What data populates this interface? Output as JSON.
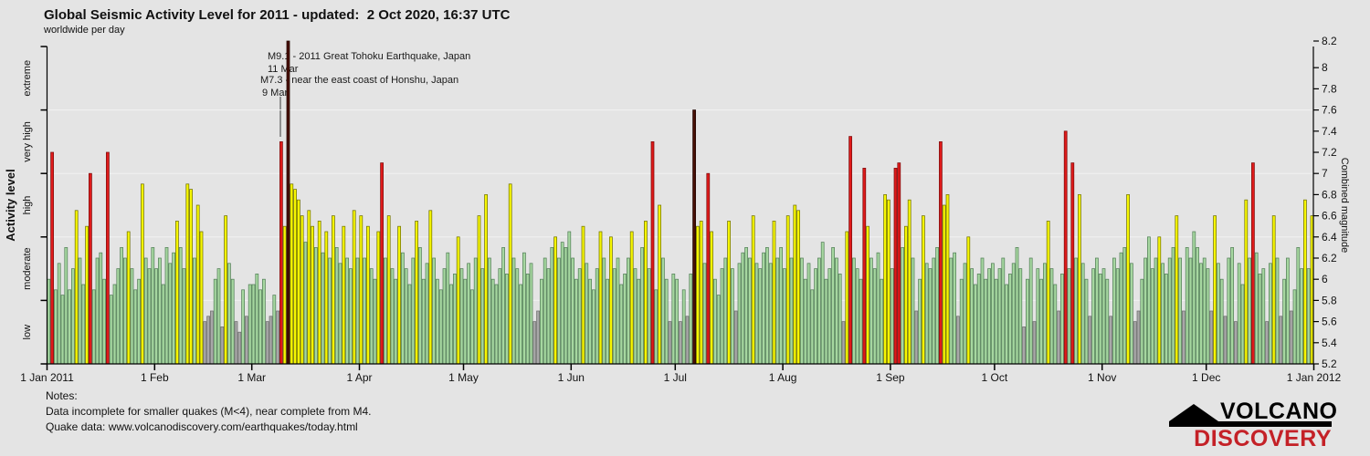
{
  "title": "Global Seismic Activity Level for 2011 - updated:  2 Oct 2020, 16:37 UTC",
  "subtitle": "worldwide per day",
  "annotations": {
    "tohoku_line1": "M9.1 - 2011 Great Tohoku Earthquake, Japan",
    "tohoku_line2": "11 Mar",
    "honshu_line1": "M7.3 - near the east coast of Honshu, Japan",
    "honshu_line2": "9 Mar"
  },
  "axes": {
    "left_label": "Activity level",
    "left_categories": [
      "extreme",
      "very high",
      "high",
      "moderate",
      "low"
    ],
    "right_label": "Combined magnitude",
    "right_ticks": [
      "8.2",
      "8",
      "7.8",
      "7.6",
      "7.4",
      "7.2",
      "7",
      "6.8",
      "6.6",
      "6.4",
      "6.2",
      "6",
      "5.8",
      "5.6",
      "5.4",
      "5.2"
    ],
    "x_ticks": [
      "1 Jan 2011",
      "1 Feb",
      "1 Mar",
      "1 Apr",
      "1 May",
      "1 Jun",
      "1 Jul",
      "1 Aug",
      "1 Sep",
      "1 Oct",
      "1 Nov",
      "1 Dec",
      "1 Jan 2012"
    ]
  },
  "notes": {
    "heading": "Notes:",
    "lines": [
      "Data incomplete for smaller quakes (M<4), near complete from M4.",
      "Quake data: www.volcanodiscovery.com/earthquakes/today.html"
    ]
  },
  "logo": {
    "line1": "VOLCANO",
    "line2": "DISCOVERY"
  },
  "colors": {
    "background": "#e4e4e4",
    "grid": "#f2f2f2",
    "axis": "#000000",
    "tick_text": "#111111",
    "annotation_line": "#8f8f8f",
    "logo_red": "#c42127"
  },
  "chart_data": {
    "type": "bar",
    "title": "Global Seismic Activity Level for 2011",
    "subtitle": "worldwide per day",
    "xlabel": "",
    "ylabel_left": "Activity level",
    "ylabel_right": "Combined magnitude",
    "ylim": [
      5.2,
      8.2
    ],
    "grid": "horizontal category boundaries",
    "x_tick_day_offsets": [
      0,
      31,
      59,
      90,
      120,
      151,
      181,
      212,
      243,
      273,
      304,
      334,
      365
    ],
    "level_codes": {
      "x": "low",
      "g": "moderate",
      "y": "high",
      "r": "very_high",
      "m": "extreme"
    },
    "level_colors": {
      "low": "#a8a8a8",
      "moderate": "#a6d7a0",
      "high": "#f7f701",
      "very_high": "#df1a1a",
      "extreme": "#470f05"
    },
    "level_strokes": {
      "low": "#6f6f6f",
      "moderate": "#55815a",
      "high": "#737300",
      "very_high": "#7e0d0d",
      "extreme": "#200400"
    },
    "notable_events": [
      {
        "date": "9 Mar",
        "magnitude": 7.3,
        "label": "M7.3 - near the east coast of Honshu, Japan"
      },
      {
        "date": "11 Mar",
        "magnitude": 9.1,
        "label": "M9.1 - 2011 Great Tohoku Earthquake, Japan",
        "clipped_above": 8.2
      }
    ],
    "months": [
      {
        "label": "Jan",
        "days": 31,
        "levels": "grggggggyggyrggggrgggggygggyggg",
        "magnitudes": [
          6.0,
          7.2,
          5.9,
          6.15,
          5.85,
          6.3,
          5.9,
          6.1,
          6.65,
          6.2,
          5.95,
          6.5,
          7.0,
          5.9,
          6.2,
          6.25,
          6.0,
          7.2,
          5.85,
          5.95,
          6.1,
          6.3,
          6.2,
          6.45,
          6.1,
          5.9,
          6.0,
          6.9,
          6.2,
          6.1,
          6.3
        ]
      },
      {
        "label": "Feb",
        "days": 28,
        "levels": "ggggggyggyygyyxxxggxyggxxgxg",
        "magnitudes": [
          6.1,
          6.2,
          5.95,
          6.3,
          6.15,
          6.25,
          6.55,
          6.3,
          6.1,
          6.9,
          6.85,
          6.2,
          6.7,
          6.45,
          5.6,
          5.65,
          5.7,
          6.0,
          6.1,
          5.55,
          6.6,
          6.15,
          6.0,
          5.6,
          5.5,
          5.9,
          5.65,
          5.95
        ]
      },
      {
        "label": "Mar",
        "days": 31,
        "levels": "ggggxxgxrymyyyygyygygygyggyggyg",
        "magnitudes": [
          5.95,
          6.05,
          5.9,
          6.0,
          5.6,
          5.65,
          5.85,
          5.7,
          7.3,
          6.5,
          8.25,
          6.9,
          6.85,
          6.75,
          6.6,
          6.35,
          6.65,
          6.5,
          6.3,
          6.55,
          6.25,
          6.45,
          6.2,
          6.6,
          6.3,
          6.15,
          6.5,
          6.2,
          6.1,
          6.65,
          6.2
        ]
      },
      {
        "label": "Apr",
        "days": 30,
        "levels": "ygyggyrgyggyggggygggygggggggyg",
        "magnitudes": [
          6.6,
          6.2,
          6.5,
          6.1,
          6.0,
          6.45,
          7.1,
          6.2,
          6.6,
          6.1,
          6.0,
          6.5,
          6.25,
          6.1,
          5.95,
          6.2,
          6.55,
          6.3,
          6.0,
          6.15,
          6.65,
          6.2,
          6.0,
          5.9,
          6.1,
          6.25,
          5.95,
          6.05,
          6.4,
          6.1
        ]
      },
      {
        "label": "May",
        "days": 31,
        "levels": "ggggygyggggggyggggggxxggggygggg",
        "magnitudes": [
          6.0,
          6.15,
          5.9,
          6.2,
          6.6,
          6.1,
          6.8,
          6.2,
          6.0,
          5.95,
          6.1,
          6.3,
          6.05,
          6.9,
          6.2,
          6.1,
          5.95,
          6.25,
          6.05,
          6.15,
          5.6,
          5.7,
          6.0,
          6.2,
          6.1,
          6.3,
          6.4,
          6.2,
          6.35,
          6.3,
          6.45
        ]
      },
      {
        "label": "Jun",
        "days": 30,
        "levels": "gggyggggyggygggggygggygrgyggxg",
        "magnitudes": [
          6.2,
          6.0,
          6.1,
          6.5,
          6.15,
          6.0,
          5.9,
          6.1,
          6.45,
          6.2,
          6.0,
          6.4,
          6.1,
          6.2,
          5.95,
          6.05,
          6.2,
          6.45,
          6.1,
          6.0,
          6.3,
          6.55,
          6.1,
          7.3,
          5.9,
          6.7,
          6.2,
          6.0,
          5.6,
          6.05
        ]
      },
      {
        "label": "Jul",
        "days": 31,
        "levels": "gxgxgmyygryggggygxggggygggggygg",
        "magnitudes": [
          6.0,
          5.6,
          5.9,
          5.65,
          6.05,
          7.6,
          6.5,
          6.55,
          6.15,
          7.0,
          6.45,
          6.0,
          5.85,
          6.1,
          6.2,
          6.55,
          6.1,
          5.7,
          6.15,
          6.25,
          6.3,
          6.2,
          6.6,
          6.15,
          6.1,
          6.25,
          6.3,
          6.15,
          6.55,
          6.2,
          6.3
        ]
      },
      {
        "label": "Aug",
        "days": 31,
        "levels": "gygyyggggggggggggxyrgggryggggyy",
        "magnitudes": [
          6.1,
          6.6,
          6.2,
          6.7,
          6.65,
          6.2,
          6.0,
          6.15,
          5.9,
          6.1,
          6.2,
          6.35,
          6.0,
          6.1,
          6.3,
          6.2,
          6.05,
          5.6,
          6.45,
          7.35,
          6.2,
          6.1,
          6.0,
          7.05,
          6.5,
          6.2,
          6.1,
          6.25,
          6.0,
          6.8,
          6.75
        ]
      },
      {
        "label": "Sep",
        "days": 30,
        "levels": "grrgyygxgyggggryyggxggyggggggg",
        "magnitudes": [
          6.1,
          7.05,
          7.1,
          6.3,
          6.5,
          6.75,
          6.2,
          5.7,
          6.0,
          6.6,
          6.15,
          6.1,
          6.2,
          6.3,
          7.3,
          6.7,
          6.8,
          6.2,
          6.25,
          5.65,
          6.0,
          6.15,
          6.4,
          6.1,
          5.95,
          6.05,
          6.2,
          6.0,
          6.1,
          6.15
        ]
      },
      {
        "label": "Oct",
        "days": 31,
        "levels": "ggggggggxggxgggyggxgrgrgyggxggg",
        "magnitudes": [
          6.0,
          6.1,
          6.2,
          5.95,
          6.05,
          6.15,
          6.3,
          6.1,
          5.55,
          6.0,
          6.2,
          5.6,
          6.1,
          6.0,
          6.15,
          6.55,
          6.1,
          5.95,
          5.7,
          6.05,
          7.4,
          6.1,
          7.1,
          6.2,
          6.8,
          6.15,
          6.0,
          5.65,
          6.1,
          6.2,
          6.05
        ]
      },
      {
        "label": "Nov",
        "days": 30,
        "levels": "ggxggggygxxgggggyggggygxgggggg",
        "magnitudes": [
          6.1,
          6.0,
          5.65,
          6.2,
          6.1,
          6.25,
          6.3,
          6.8,
          6.15,
          5.6,
          5.7,
          6.0,
          6.2,
          6.4,
          6.1,
          6.2,
          6.4,
          6.15,
          6.05,
          6.2,
          6.3,
          6.6,
          6.2,
          5.7,
          6.3,
          6.2,
          6.45,
          6.3,
          6.15,
          6.2
        ]
      },
      {
        "label": "Dec",
        "days": 31,
        "levels": "gxyggxggxggygrgggxgygxggxgggygy",
        "magnitudes": [
          6.1,
          5.7,
          6.6,
          6.15,
          6.0,
          5.65,
          6.2,
          6.3,
          5.6,
          6.15,
          5.95,
          6.75,
          6.2,
          7.1,
          6.25,
          6.05,
          6.1,
          5.6,
          6.15,
          6.6,
          6.2,
          5.65,
          6.0,
          6.2,
          5.7,
          5.9,
          6.3,
          6.1,
          6.75,
          6.1,
          6.6
        ]
      }
    ]
  }
}
